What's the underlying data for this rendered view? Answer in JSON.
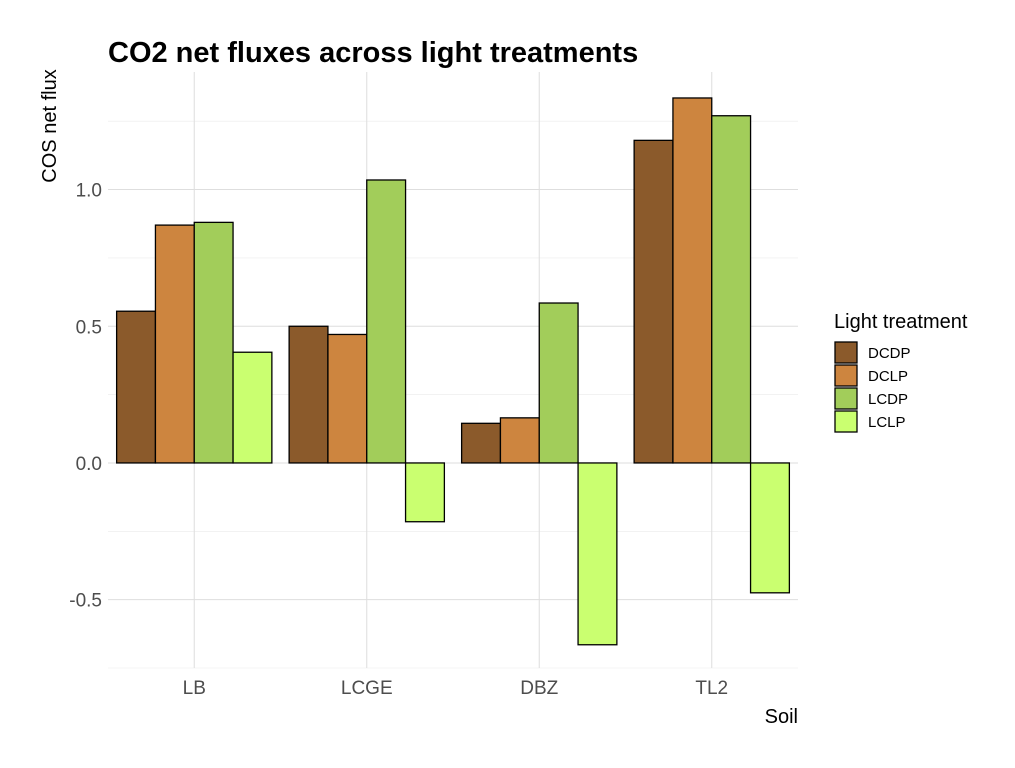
{
  "chart_data": {
    "type": "bar",
    "title": "CO2 net fluxes across light treatments",
    "xlabel": "Soil",
    "ylabel": "COS net flux",
    "categories": [
      "LB",
      "LCGE",
      "DBZ",
      "TL2"
    ],
    "ylim": [
      -0.75,
      1.43
    ],
    "yticks": [
      -0.5,
      0.0,
      0.5,
      1.0
    ],
    "ytick_labels": [
      "-0.5",
      "0.0",
      "0.5",
      "1.0"
    ],
    "grid": true,
    "legend": {
      "title": "Light treatment",
      "position": "right"
    },
    "series": [
      {
        "name": "DCDP",
        "color": "#8B5A2B",
        "values": [
          0.555,
          0.5,
          0.145,
          1.18
        ]
      },
      {
        "name": "DCLP",
        "color": "#CD853F",
        "values": [
          0.87,
          0.47,
          0.165,
          1.335
        ]
      },
      {
        "name": "LCDP",
        "color": "#A2CD5A",
        "values": [
          0.88,
          1.035,
          0.585,
          1.27
        ]
      },
      {
        "name": "LCLP",
        "color": "#CAFF70",
        "values": [
          0.405,
          -0.215,
          -0.665,
          -0.475
        ]
      }
    ]
  }
}
